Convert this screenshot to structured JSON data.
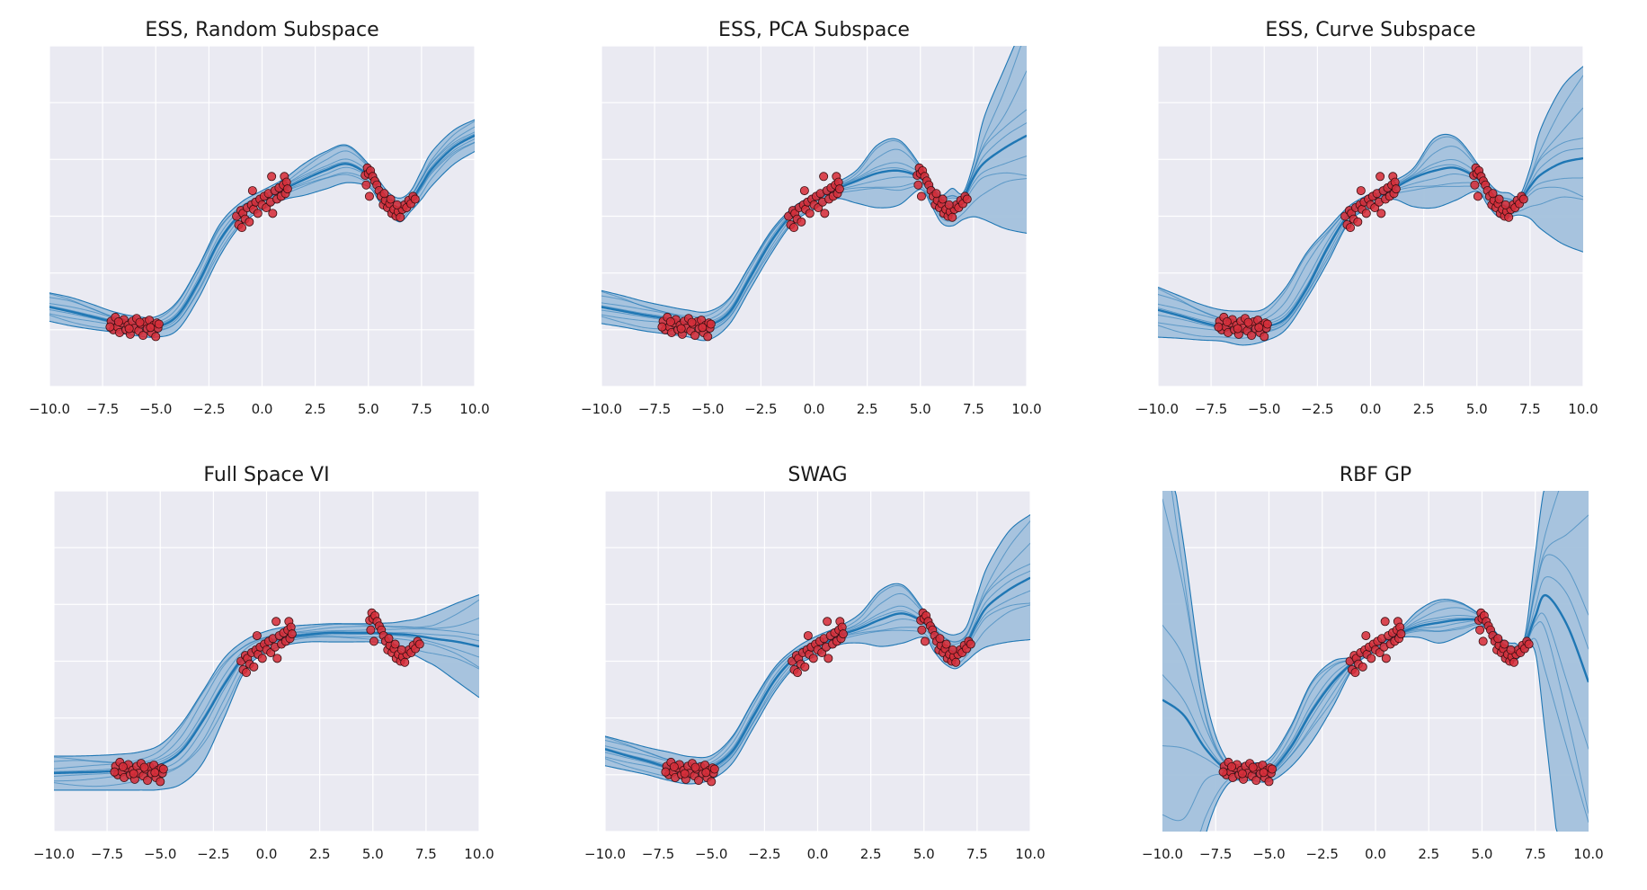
{
  "colors": {
    "axes_background": "#eaeaf2",
    "grid": "#ffffff",
    "line": "#1f77b4",
    "band_fill": "#a3c1dc",
    "points_fill": "#d62f3a",
    "points_edge": "#3a0f12"
  },
  "chart_data": [
    {
      "type": "line",
      "title": "ESS, Random Subspace",
      "xlim": [
        -10,
        10
      ],
      "ylim": [
        -3,
        3
      ],
      "xticks": [
        "−10.0",
        "−7.5",
        "−5.0",
        "−2.5",
        "0.0",
        "2.5",
        "5.0",
        "7.5",
        "10.0"
      ],
      "grid": true,
      "ytick_labels_shown": false,
      "x": [
        -10,
        -9,
        -8,
        -7,
        -6,
        -5,
        -4,
        -3,
        -2,
        -1,
        0,
        1,
        2,
        3,
        4,
        5,
        5.5,
        6,
        6.5,
        7,
        7.5,
        8,
        9,
        10
      ],
      "mean": [
        -1.6,
        -1.68,
        -1.77,
        -1.86,
        -1.93,
        -1.95,
        -1.76,
        -1.17,
        -0.43,
        0.04,
        0.28,
        0.47,
        0.65,
        0.81,
        0.92,
        0.72,
        0.45,
        0.22,
        0.15,
        0.27,
        0.55,
        0.84,
        1.21,
        1.42
      ],
      "upper": [
        -1.35,
        -1.43,
        -1.55,
        -1.68,
        -1.76,
        -1.77,
        -1.51,
        -0.89,
        -0.15,
        0.24,
        0.45,
        0.65,
        0.93,
        1.14,
        1.25,
        0.92,
        0.63,
        0.4,
        0.32,
        0.45,
        0.8,
        1.14,
        1.51,
        1.7
      ],
      "lower": [
        -1.85,
        -1.93,
        -1.99,
        -2.04,
        -2.1,
        -2.13,
        -2.01,
        -1.45,
        -0.71,
        -0.16,
        0.11,
        0.29,
        0.37,
        0.48,
        0.59,
        0.52,
        0.27,
        0.04,
        -0.1,
        0.09,
        0.3,
        0.54,
        0.91,
        1.14
      ]
    },
    {
      "type": "line",
      "title": "ESS, PCA Subspace",
      "xlim": [
        -10,
        10
      ],
      "ylim": [
        -3,
        3
      ],
      "xticks": [
        "−10.0",
        "−7.5",
        "−5.0",
        "−2.5",
        "0.0",
        "2.5",
        "5.0",
        "7.5",
        "10.0"
      ],
      "grid": true,
      "ytick_labels_shown": false,
      "x": [
        -10,
        -9,
        -8,
        -7,
        -6,
        -5,
        -4,
        -3,
        -2,
        -1,
        0,
        1,
        2,
        3,
        4,
        5,
        5.5,
        6,
        6.5,
        7,
        7.5,
        8,
        9,
        10
      ],
      "mean": [
        -1.6,
        -1.67,
        -1.74,
        -1.8,
        -1.88,
        -1.92,
        -1.7,
        -1.07,
        -0.43,
        0.04,
        0.28,
        0.47,
        0.62,
        0.76,
        0.8,
        0.68,
        0.45,
        0.28,
        0.2,
        0.31,
        0.68,
        0.94,
        1.21,
        1.42
      ],
      "upper": [
        -1.31,
        -1.4,
        -1.5,
        -1.58,
        -1.65,
        -1.68,
        -1.45,
        -0.85,
        -0.25,
        0.15,
        0.38,
        0.58,
        0.81,
        1.26,
        1.34,
        0.89,
        0.57,
        0.37,
        0.49,
        0.41,
        0.94,
        1.74,
        2.64,
        3.5
      ],
      "lower": [
        -1.89,
        -1.95,
        -2.02,
        -2.07,
        -2.12,
        -2.18,
        -1.91,
        -1.28,
        -0.65,
        -0.12,
        0.12,
        0.31,
        0.23,
        0.15,
        0.2,
        0.47,
        0.2,
        -0.12,
        -0.17,
        -0.06,
        -0.01,
        -0.06,
        -0.22,
        -0.3
      ]
    },
    {
      "type": "line",
      "title": "ESS, Curve Subspace",
      "xlim": [
        -10,
        10
      ],
      "ylim": [
        -3,
        3
      ],
      "xticks": [
        "−10.0",
        "−7.5",
        "−5.0",
        "−2.5",
        "0.0",
        "2.5",
        "5.0",
        "7.5",
        "10.0"
      ],
      "grid": true,
      "ytick_labels_shown": false,
      "x": [
        -10,
        -9,
        -8,
        -7,
        -6,
        -5,
        -4,
        -3,
        -2,
        -1,
        0,
        1,
        2,
        3,
        4,
        5,
        5.5,
        6,
        6.5,
        7,
        7.5,
        8,
        9,
        10
      ],
      "mean": [
        -1.65,
        -1.75,
        -1.86,
        -1.95,
        -2.0,
        -1.95,
        -1.8,
        -1.27,
        -0.54,
        0.04,
        0.28,
        0.47,
        0.67,
        0.8,
        0.85,
        0.67,
        0.46,
        0.25,
        0.17,
        0.25,
        0.52,
        0.73,
        0.94,
        1.02
      ],
      "upper": [
        -1.25,
        -1.4,
        -1.55,
        -1.65,
        -1.67,
        -1.63,
        -1.26,
        -0.64,
        -0.21,
        0.18,
        0.4,
        0.6,
        0.84,
        1.37,
        1.39,
        0.94,
        0.62,
        0.44,
        0.41,
        0.36,
        0.84,
        1.53,
        2.27,
        2.64
      ],
      "lower": [
        -2.13,
        -2.15,
        -2.18,
        -2.2,
        -2.27,
        -2.2,
        -2.0,
        -1.45,
        -0.8,
        -0.1,
        0.15,
        0.3,
        0.17,
        0.15,
        0.28,
        0.44,
        0.2,
        -0.01,
        -0.01,
        0.02,
        -0.04,
        -0.22,
        -0.48,
        -0.63
      ]
    },
    {
      "type": "line",
      "title": "Full Space VI",
      "xlim": [
        -10,
        10
      ],
      "ylim": [
        -3,
        3
      ],
      "xticks": [
        "−10.0",
        "−7.5",
        "−5.0",
        "−2.5",
        "0.0",
        "2.5",
        "5.0",
        "7.5",
        "10.0"
      ],
      "grid": true,
      "ytick_labels_shown": false,
      "x": [
        -10,
        -9,
        -8,
        -7,
        -6,
        -5,
        -4,
        -3,
        -2,
        -1,
        0,
        1,
        2,
        3,
        4,
        5,
        5.5,
        6,
        6.5,
        7,
        7.5,
        8,
        9,
        10
      ],
      "mean": [
        -1.97,
        -1.96,
        -1.95,
        -1.93,
        -1.9,
        -1.82,
        -1.58,
        -1.05,
        -0.42,
        0.1,
        0.32,
        0.42,
        0.47,
        0.5,
        0.5,
        0.5,
        0.49,
        0.48,
        0.47,
        0.45,
        0.42,
        0.39,
        0.34,
        0.26
      ],
      "upper": [
        -1.67,
        -1.67,
        -1.66,
        -1.64,
        -1.6,
        -1.47,
        -1.1,
        -0.53,
        0.05,
        0.37,
        0.53,
        0.61,
        0.64,
        0.66,
        0.66,
        0.66,
        0.67,
        0.68,
        0.71,
        0.74,
        0.8,
        0.87,
        1.03,
        1.17
      ],
      "lower": [
        -2.27,
        -2.27,
        -2.27,
        -2.27,
        -2.27,
        -2.26,
        -2.16,
        -1.79,
        -1.0,
        -0.16,
        0.16,
        0.29,
        0.34,
        0.34,
        0.34,
        0.34,
        0.31,
        0.26,
        0.18,
        0.1,
        0.0,
        -0.1,
        -0.37,
        -0.64
      ]
    },
    {
      "type": "line",
      "title": "SWAG",
      "xlim": [
        -10,
        10
      ],
      "ylim": [
        -3,
        3
      ],
      "xticks": [
        "−10.0",
        "−7.5",
        "−5.0",
        "−2.5",
        "0.0",
        "2.5",
        "5.0",
        "7.5",
        "10.0"
      ],
      "grid": true,
      "ytick_labels_shown": false,
      "x": [
        -10,
        -9,
        -8,
        -7,
        -6,
        -5,
        -4,
        -3,
        -2,
        -1,
        0,
        1,
        2,
        3,
        4,
        5,
        5.5,
        6,
        6.5,
        7,
        7.5,
        8,
        9,
        10
      ],
      "mean": [
        -1.55,
        -1.66,
        -1.76,
        -1.87,
        -1.92,
        -1.87,
        -1.58,
        -0.95,
        -0.32,
        0.08,
        0.26,
        0.45,
        0.58,
        0.74,
        0.84,
        0.68,
        0.47,
        0.24,
        0.18,
        0.32,
        0.68,
        0.97,
        1.26,
        1.47
      ],
      "upper": [
        -1.32,
        -1.42,
        -1.52,
        -1.6,
        -1.68,
        -1.66,
        -1.32,
        -0.68,
        -0.1,
        0.24,
        0.45,
        0.61,
        0.84,
        1.26,
        1.34,
        0.89,
        0.63,
        0.5,
        0.47,
        0.61,
        1.16,
        1.68,
        2.29,
        2.58
      ],
      "lower": [
        -1.84,
        -1.92,
        -2.0,
        -2.1,
        -2.16,
        -2.08,
        -1.79,
        -1.16,
        -0.53,
        -0.08,
        0.1,
        0.29,
        0.32,
        0.26,
        0.32,
        0.42,
        0.16,
        -0.05,
        -0.13,
        0.0,
        0.16,
        0.26,
        0.34,
        0.38
      ]
    },
    {
      "type": "line",
      "title": "RBF GP",
      "xlim": [
        -10,
        10
      ],
      "ylim": [
        -3,
        3
      ],
      "xticks": [
        "−10.0",
        "−7.5",
        "−5.0",
        "−2.5",
        "0.0",
        "2.5",
        "5.0",
        "7.5",
        "10.0"
      ],
      "grid": true,
      "ytick_labels_shown": false,
      "x": [
        -10,
        -9,
        -8,
        -7,
        -6,
        -5,
        -4,
        -3,
        -2,
        -1,
        0,
        1,
        2,
        3,
        4,
        5,
        5.5,
        6,
        6.5,
        7,
        7.5,
        8,
        9,
        10
      ],
      "mean": [
        -0.68,
        -0.95,
        -1.53,
        -1.9,
        -1.94,
        -1.95,
        -1.53,
        -0.89,
        -0.37,
        0.0,
        0.26,
        0.47,
        0.61,
        0.68,
        0.73,
        0.71,
        0.47,
        0.24,
        0.16,
        0.29,
        0.79,
        1.16,
        0.63,
        -0.37
      ],
      "upper": [
        4.5,
        2.05,
        -0.58,
        -1.72,
        -1.78,
        -1.72,
        -1.16,
        -0.37,
        0.0,
        0.08,
        0.3,
        0.52,
        0.89,
        1.08,
        1.03,
        0.79,
        0.58,
        0.37,
        0.32,
        0.42,
        1.89,
        3.2,
        4.5,
        5.0
      ],
      "lower": [
        -5.0,
        -5.0,
        -3.1,
        -2.2,
        -2.1,
        -2.12,
        -1.87,
        -1.42,
        -0.8,
        -0.1,
        0.18,
        0.4,
        0.42,
        0.32,
        0.45,
        0.62,
        0.35,
        0.05,
        0.0,
        0.15,
        0.15,
        -1.37,
        -4.5,
        -6.0
      ]
    }
  ],
  "observations": [
    [
      -7.1,
      -1.85
    ],
    [
      -7.0,
      -2.0
    ],
    [
      -6.9,
      -1.78
    ],
    [
      -6.8,
      -1.95
    ],
    [
      -6.7,
      -2.05
    ],
    [
      -6.6,
      -1.88
    ],
    [
      -6.5,
      -1.82
    ],
    [
      -6.4,
      -2.0
    ],
    [
      -6.3,
      -1.92
    ],
    [
      -6.2,
      -2.08
    ],
    [
      -6.1,
      -1.85
    ],
    [
      -6.0,
      -1.97
    ],
    [
      -5.9,
      -1.8
    ],
    [
      -5.8,
      -2.02
    ],
    [
      -5.7,
      -1.9
    ],
    [
      -5.6,
      -2.1
    ],
    [
      -5.5,
      -1.86
    ],
    [
      -5.4,
      -1.98
    ],
    [
      -5.3,
      -1.83
    ],
    [
      -5.2,
      -2.05
    ],
    [
      -5.1,
      -1.92
    ],
    [
      -5.0,
      -2.12
    ],
    [
      -4.95,
      -1.88
    ],
    [
      -4.9,
      -1.97
    ],
    [
      -7.15,
      -1.95
    ],
    [
      -6.75,
      -1.86
    ],
    [
      -6.25,
      -1.98
    ],
    [
      -5.75,
      -1.87
    ],
    [
      -5.25,
      -1.96
    ],
    [
      -4.85,
      -1.9
    ],
    [
      -1.2,
      0.0
    ],
    [
      -1.1,
      -0.15
    ],
    [
      -1.0,
      0.1
    ],
    [
      -0.95,
      -0.2
    ],
    [
      -0.9,
      0.05
    ],
    [
      -0.8,
      -0.05
    ],
    [
      -0.7,
      0.15
    ],
    [
      -0.6,
      -0.1
    ],
    [
      -0.5,
      0.2
    ],
    [
      -0.45,
      0.45
    ],
    [
      -0.4,
      0.12
    ],
    [
      -0.3,
      0.25
    ],
    [
      -0.2,
      0.05
    ],
    [
      -0.1,
      0.3
    ],
    [
      0.0,
      0.2
    ],
    [
      0.1,
      0.35
    ],
    [
      0.2,
      0.15
    ],
    [
      0.3,
      0.4
    ],
    [
      0.4,
      0.25
    ],
    [
      0.45,
      0.7
    ],
    [
      0.5,
      0.05
    ],
    [
      0.6,
      0.45
    ],
    [
      0.7,
      0.3
    ],
    [
      0.8,
      0.5
    ],
    [
      0.9,
      0.35
    ],
    [
      1.0,
      0.55
    ],
    [
      1.05,
      0.7
    ],
    [
      1.1,
      0.4
    ],
    [
      1.15,
      0.6
    ],
    [
      1.2,
      0.48
    ],
    [
      4.85,
      0.72
    ],
    [
      4.9,
      0.55
    ],
    [
      4.95,
      0.85
    ],
    [
      5.0,
      0.75
    ],
    [
      5.05,
      0.35
    ],
    [
      5.1,
      0.8
    ],
    [
      5.2,
      0.7
    ],
    [
      5.3,
      0.62
    ],
    [
      5.4,
      0.55
    ],
    [
      5.5,
      0.45
    ],
    [
      5.6,
      0.35
    ],
    [
      5.7,
      0.2
    ],
    [
      5.8,
      0.28
    ],
    [
      5.9,
      0.15
    ],
    [
      6.0,
      0.22
    ],
    [
      6.1,
      0.05
    ],
    [
      6.2,
      0.12
    ],
    [
      6.3,
      0.0
    ],
    [
      6.4,
      0.08
    ],
    [
      6.5,
      -0.02
    ],
    [
      6.6,
      0.12
    ],
    [
      6.7,
      0.2
    ],
    [
      6.8,
      0.15
    ],
    [
      6.9,
      0.28
    ],
    [
      7.0,
      0.22
    ],
    [
      7.1,
      0.35
    ],
    [
      7.2,
      0.3
    ],
    [
      6.35,
      0.2
    ],
    [
      5.75,
      0.4
    ],
    [
      6.05,
      0.3
    ]
  ]
}
